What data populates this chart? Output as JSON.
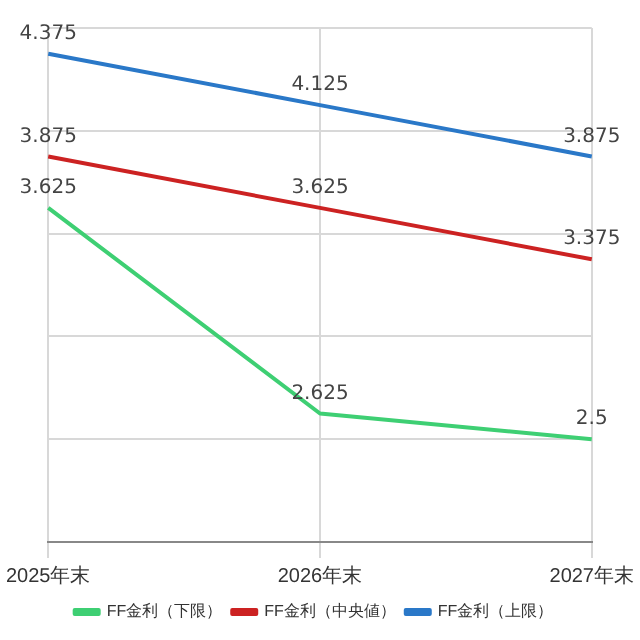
{
  "chart_data": {
    "type": "line",
    "categories": [
      "2025年末",
      "2026年末",
      "2027年末"
    ],
    "series": [
      {
        "name": "FF金利（下限）",
        "color": "#3ecf73",
        "values": [
          3.625,
          2.625,
          2.5
        ]
      },
      {
        "name": "FF金利（中央値）",
        "color": "#cc2222",
        "values": [
          3.875,
          3.625,
          3.375
        ]
      },
      {
        "name": "FF金利（上限）",
        "color": "#2a78c8",
        "values": [
          4.375,
          4.125,
          3.875
        ]
      }
    ],
    "ylim": [
      2,
      4.5
    ],
    "yticks": [
      {
        "value": 2,
        "label": null
      },
      {
        "value": 2.5,
        "label": null
      },
      {
        "value": 3,
        "label": null
      },
      {
        "value": 3.5,
        "label": null
      },
      {
        "value": 4,
        "label": null
      },
      {
        "value": 4.5,
        "label": null
      }
    ],
    "tick_labels": "x",
    "grid": true,
    "legend": "bottom",
    "data_labels": true,
    "marker": "none",
    "line_style": "solid"
  }
}
